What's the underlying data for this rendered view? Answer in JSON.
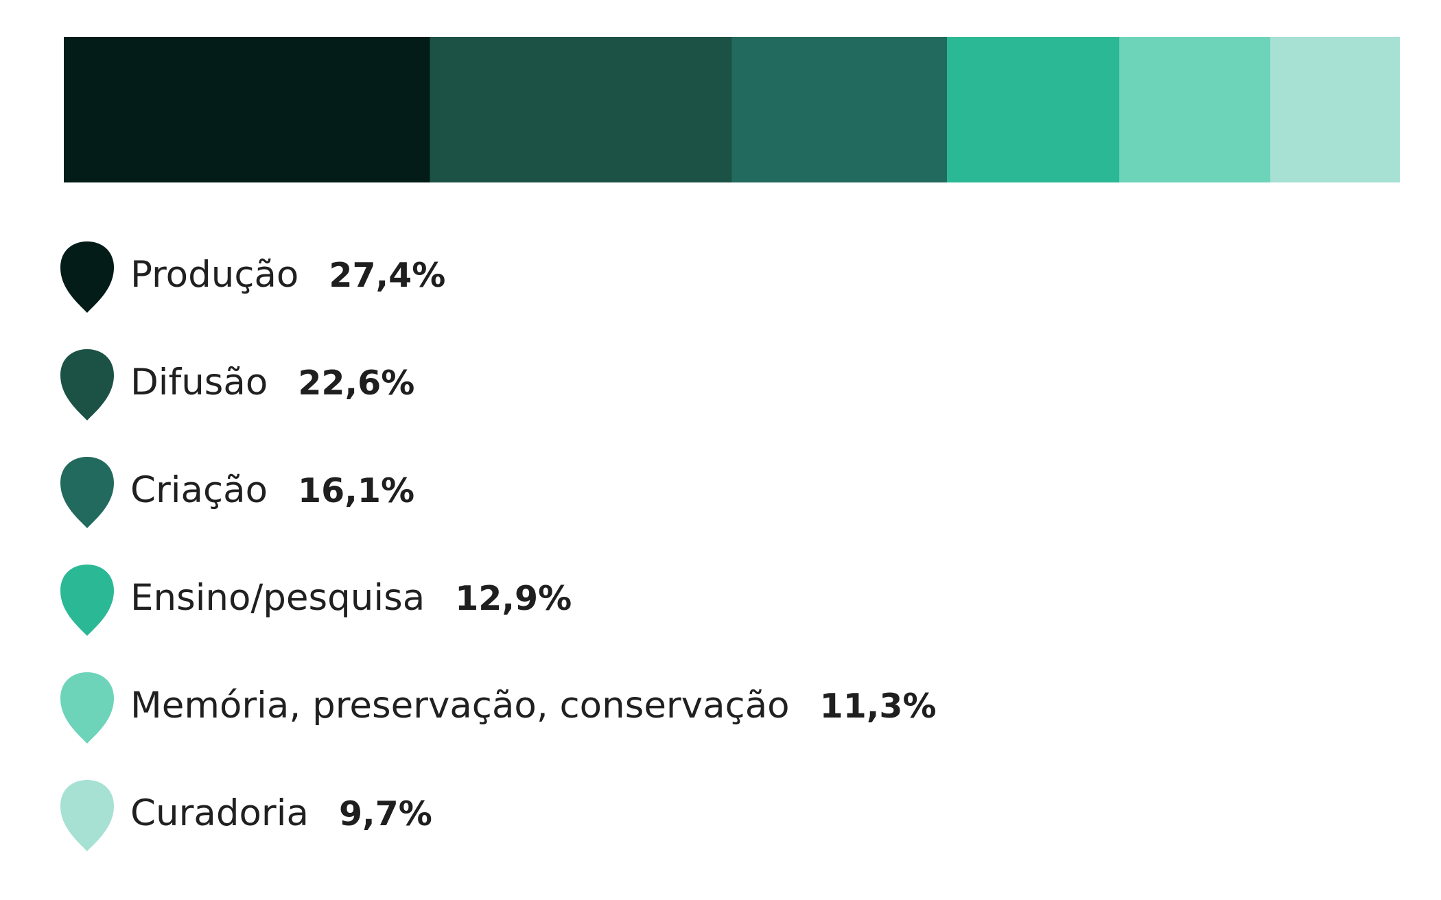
{
  "chart_data": {
    "type": "bar",
    "orientation": "horizontal-stacked",
    "title": "",
    "xlabel": "",
    "ylabel": "",
    "xlim": [
      0,
      100
    ],
    "grid": false,
    "legend_position": "below",
    "categories": [
      "Produção",
      "Difusão",
      "Criação",
      "Ensino/pesquisa",
      "Memória, preservação, conservação",
      "Curadoria"
    ],
    "values": [
      27.4,
      22.6,
      16.1,
      12.9,
      11.3,
      9.7
    ],
    "labels": [
      "27,4%",
      "22,6%",
      "16,1%",
      "12,9%",
      "11,3%",
      "9,7%"
    ],
    "colors": [
      "#041c17",
      "#1c5246",
      "#216a5d",
      "#2ab895",
      "#6dd4ba",
      "#a6e1d4"
    ]
  }
}
